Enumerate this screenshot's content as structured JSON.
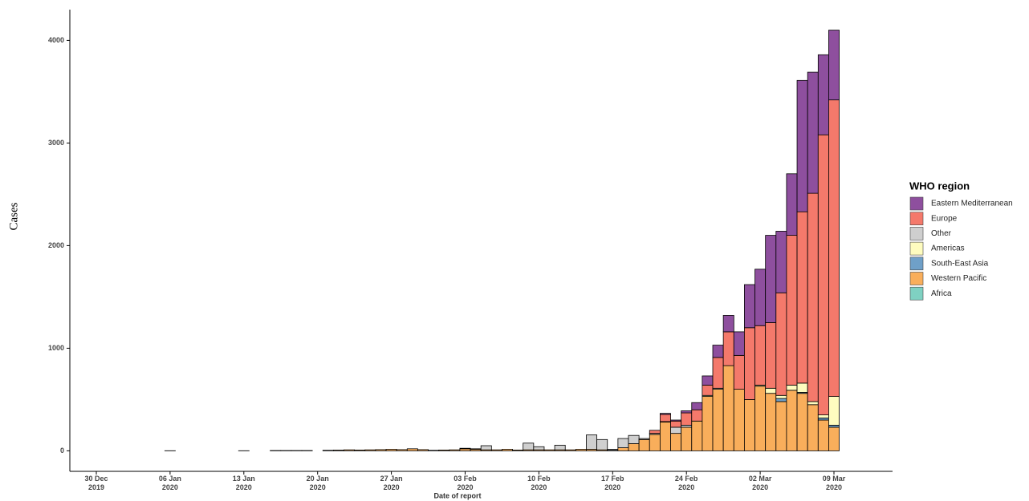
{
  "chart_data": {
    "type": "stacked_bar",
    "x_label": "Date of report",
    "y_label": "Cases",
    "legend_title": "WHO region",
    "legend_position": "right",
    "x": [
      "2019-12-30",
      "2019-12-31",
      "2020-01-01",
      "2020-01-02",
      "2020-01-03",
      "2020-01-04",
      "2020-01-05",
      "2020-01-06",
      "2020-01-07",
      "2020-01-08",
      "2020-01-09",
      "2020-01-10",
      "2020-01-11",
      "2020-01-12",
      "2020-01-13",
      "2020-01-14",
      "2020-01-15",
      "2020-01-16",
      "2020-01-17",
      "2020-01-18",
      "2020-01-19",
      "2020-01-20",
      "2020-01-21",
      "2020-01-22",
      "2020-01-23",
      "2020-01-24",
      "2020-01-25",
      "2020-01-26",
      "2020-01-27",
      "2020-01-28",
      "2020-01-29",
      "2020-01-30",
      "2020-01-31",
      "2020-02-01",
      "2020-02-02",
      "2020-02-03",
      "2020-02-04",
      "2020-02-05",
      "2020-02-06",
      "2020-02-07",
      "2020-02-08",
      "2020-02-09",
      "2020-02-10",
      "2020-02-11",
      "2020-02-12",
      "2020-02-13",
      "2020-02-14",
      "2020-02-15",
      "2020-02-16",
      "2020-02-17",
      "2020-02-18",
      "2020-02-19",
      "2020-02-20",
      "2020-02-21",
      "2020-02-22",
      "2020-02-23",
      "2020-02-24",
      "2020-02-25",
      "2020-02-26",
      "2020-02-27",
      "2020-02-28",
      "2020-02-29",
      "2020-03-01",
      "2020-03-02",
      "2020-03-03",
      "2020-03-04",
      "2020-03-05",
      "2020-03-06",
      "2020-03-07",
      "2020-03-08",
      "2020-03-09"
    ],
    "xticks": [
      {
        "value": "2019-12-30",
        "label": "30 Dec 2019"
      },
      {
        "value": "2020-01-06",
        "label": "06 Jan 2020"
      },
      {
        "value": "2020-01-13",
        "label": "13 Jan 2020"
      },
      {
        "value": "2020-01-20",
        "label": "20 Jan 2020"
      },
      {
        "value": "2020-01-27",
        "label": "27 Jan 2020"
      },
      {
        "value": "2020-02-03",
        "label": "03 Feb 2020"
      },
      {
        "value": "2020-02-10",
        "label": "10 Feb 2020"
      },
      {
        "value": "2020-02-17",
        "label": "17 Feb 2020"
      },
      {
        "value": "2020-02-24",
        "label": "24 Feb 2020"
      },
      {
        "value": "2020-03-02",
        "label": "02 Mar 2020"
      },
      {
        "value": "2020-03-09",
        "label": "09 Mar 2020"
      }
    ],
    "ylim": [
      -200,
      4300
    ],
    "yticks": [
      0,
      1000,
      2000,
      3000,
      4000
    ],
    "grid": false,
    "series": [
      {
        "name": "Eastern Mediterranean",
        "color": "#8e4f9e",
        "values": [
          0,
          0,
          0,
          0,
          0,
          0,
          0,
          0,
          0,
          0,
          0,
          0,
          0,
          0,
          0,
          0,
          0,
          0,
          0,
          0,
          0,
          0,
          0,
          0,
          0,
          0,
          0,
          0,
          0,
          0,
          0,
          0,
          0,
          0,
          0,
          0,
          0,
          0,
          0,
          0,
          0,
          0,
          0,
          0,
          0,
          0,
          0,
          0,
          0,
          0,
          0,
          0,
          0,
          0,
          10,
          10,
          20,
          70,
          90,
          120,
          160,
          230,
          420,
          550,
          850,
          600,
          600,
          1280,
          1180,
          780,
          680
        ]
      },
      {
        "name": "Europe",
        "color": "#f4796b",
        "values": [
          0,
          0,
          0,
          0,
          0,
          0,
          0,
          0,
          0,
          0,
          0,
          0,
          0,
          0,
          0,
          0,
          0,
          0,
          0,
          0,
          0,
          0,
          0,
          0,
          0,
          0,
          0,
          0,
          0,
          0,
          0,
          0,
          0,
          0,
          0,
          0,
          0,
          0,
          0,
          0,
          0,
          0,
          0,
          0,
          0,
          0,
          0,
          0,
          0,
          0,
          0,
          0,
          0,
          30,
          70,
          60,
          120,
          110,
          100,
          300,
          330,
          330,
          700,
          580,
          640,
          1000,
          1460,
          1670,
          2030,
          2730,
          2890
        ]
      },
      {
        "name": "Other",
        "color": "#cfcfcf",
        "values": [
          0,
          0,
          0,
          0,
          0,
          0,
          0,
          0,
          0,
          0,
          0,
          0,
          0,
          0,
          0,
          0,
          0,
          0,
          0,
          0,
          0,
          0,
          0,
          0,
          0,
          0,
          0,
          0,
          0,
          0,
          0,
          0,
          0,
          0,
          0,
          5,
          5,
          40,
          0,
          0,
          0,
          65,
          30,
          0,
          45,
          0,
          0,
          140,
          100,
          10,
          90,
          80,
          10,
          10,
          0,
          60,
          20,
          0,
          0,
          10,
          0,
          0,
          0,
          0,
          0,
          0,
          0,
          0,
          0,
          0,
          0
        ]
      },
      {
        "name": "Americas",
        "color": "#fefcbf",
        "values": [
          0,
          0,
          0,
          0,
          0,
          0,
          0,
          0,
          0,
          0,
          0,
          0,
          0,
          0,
          0,
          0,
          0,
          0,
          0,
          0,
          0,
          0,
          0,
          0,
          0,
          0,
          0,
          0,
          0,
          0,
          0,
          0,
          0,
          0,
          0,
          0,
          0,
          0,
          0,
          0,
          0,
          0,
          0,
          0,
          0,
          0,
          0,
          0,
          0,
          0,
          0,
          0,
          0,
          0,
          5,
          0,
          0,
          0,
          10,
          0,
          0,
          0,
          0,
          10,
          50,
          30,
          50,
          90,
          30,
          30,
          280
        ]
      },
      {
        "name": "South-East Asia",
        "color": "#6fa0c8",
        "values": [
          0,
          0,
          0,
          0,
          0,
          0,
          0,
          0,
          0,
          0,
          0,
          0,
          0,
          0,
          0,
          0,
          0,
          0,
          0,
          0,
          0,
          0,
          0,
          0,
          0,
          0,
          0,
          0,
          0,
          0,
          0,
          0,
          0,
          0,
          0,
          0,
          0,
          0,
          0,
          0,
          0,
          0,
          0,
          0,
          0,
          0,
          0,
          0,
          0,
          0,
          0,
          0,
          0,
          0,
          0,
          0,
          0,
          0,
          0,
          0,
          0,
          0,
          0,
          0,
          0,
          30,
          0,
          10,
          0,
          20,
          20
        ]
      },
      {
        "name": "Western Pacific",
        "color": "#f9ae5b",
        "values": [
          0,
          0,
          0,
          0,
          0,
          0,
          0,
          1,
          0,
          0,
          0,
          0,
          0,
          0,
          1,
          0,
          0,
          3,
          3,
          3,
          3,
          0,
          5,
          7,
          10,
          8,
          10,
          12,
          15,
          12,
          20,
          12,
          5,
          8,
          10,
          20,
          15,
          10,
          10,
          15,
          8,
          10,
          10,
          10,
          10,
          10,
          15,
          15,
          10,
          5,
          30,
          70,
          110,
          160,
          280,
          170,
          230,
          290,
          530,
          600,
          830,
          600,
          500,
          630,
          560,
          480,
          590,
          560,
          450,
          300,
          230
        ]
      },
      {
        "name": "Africa",
        "color": "#7fd1c2",
        "values": [
          0,
          0,
          0,
          0,
          0,
          0,
          0,
          0,
          0,
          0,
          0,
          0,
          0,
          0,
          0,
          0,
          0,
          0,
          0,
          0,
          0,
          0,
          0,
          0,
          0,
          0,
          0,
          0,
          0,
          0,
          0,
          0,
          0,
          0,
          0,
          0,
          0,
          0,
          0,
          0,
          0,
          0,
          0,
          0,
          0,
          0,
          0,
          0,
          0,
          0,
          0,
          0,
          0,
          0,
          0,
          0,
          0,
          0,
          0,
          0,
          0,
          0,
          0,
          0,
          0,
          0,
          0,
          0,
          0,
          0,
          0
        ]
      }
    ]
  }
}
